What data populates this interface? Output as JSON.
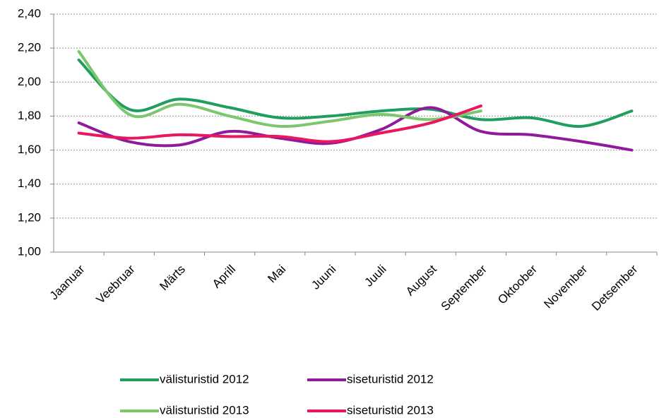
{
  "chart_data": {
    "type": "line",
    "categories": [
      "Jaanuar",
      "Veebruar",
      "Märts",
      "Aprill",
      "Mai",
      "Juuni",
      "Juuli",
      "August",
      "September",
      "Oktoober",
      "November",
      "Detsember"
    ],
    "series": [
      {
        "name": "välisturistid 2012",
        "color": "#1f9e5e",
        "values": [
          2.13,
          1.84,
          1.9,
          1.85,
          1.79,
          1.8,
          1.83,
          1.84,
          1.78,
          1.79,
          1.74,
          1.83
        ]
      },
      {
        "name": "siseturistid 2012",
        "color": "#8e1a9c",
        "values": [
          1.76,
          1.65,
          1.63,
          1.71,
          1.67,
          1.64,
          1.72,
          1.85,
          1.71,
          1.69,
          1.65,
          1.6
        ]
      },
      {
        "name": "välisturistid 2013",
        "color": "#7cc66c",
        "values": [
          2.18,
          1.81,
          1.87,
          1.8,
          1.74,
          1.77,
          1.81,
          1.78,
          1.83,
          null,
          null,
          null
        ]
      },
      {
        "name": "siseturistid 2013",
        "color": "#ea1660",
        "values": [
          1.7,
          1.67,
          1.69,
          1.68,
          1.68,
          1.65,
          1.7,
          1.76,
          1.86,
          null,
          null,
          null
        ]
      }
    ],
    "ylim": [
      1.0,
      2.4
    ],
    "yticks": [
      {
        "value": 1.0,
        "label": "1,00"
      },
      {
        "value": 1.2,
        "label": "1,20"
      },
      {
        "value": 1.4,
        "label": "1,40"
      },
      {
        "value": 1.6,
        "label": "1,60"
      },
      {
        "value": 1.8,
        "label": "1,80"
      },
      {
        "value": 2.0,
        "label": "2,00"
      },
      {
        "value": 2.2,
        "label": "2,20"
      },
      {
        "value": 2.4,
        "label": "2,40"
      }
    ],
    "grid": true,
    "legend": "bottom"
  }
}
